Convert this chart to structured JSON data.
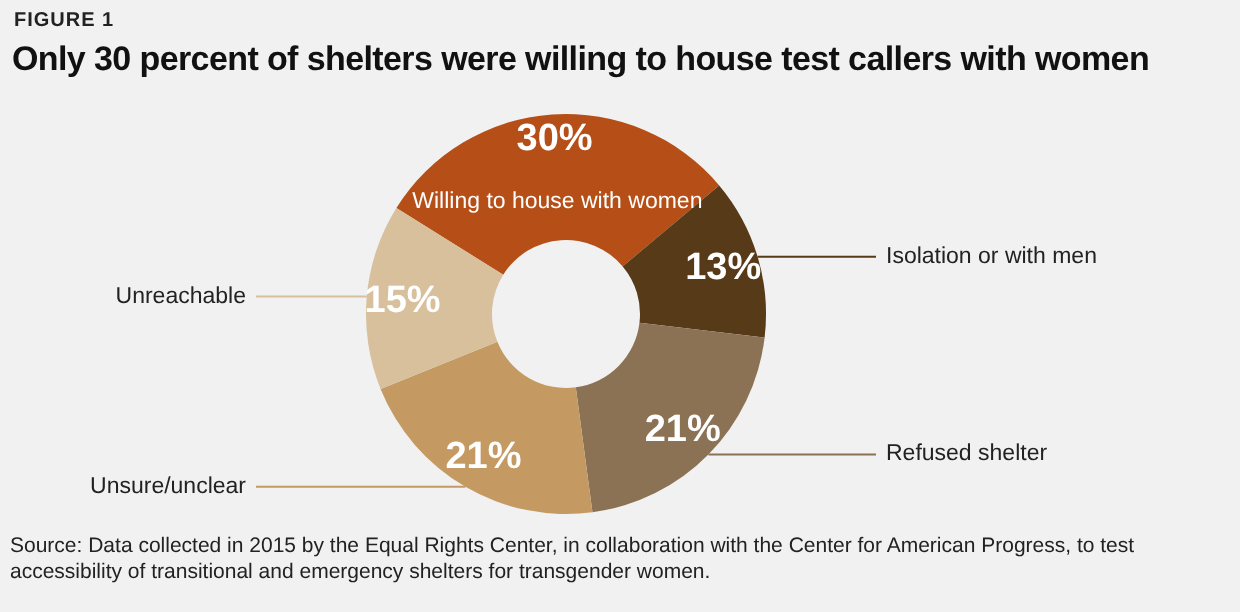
{
  "chart_data": {
    "type": "donut",
    "title": "Only 30 percent of shelters were willing to house test callers with women",
    "subtitle": "FIGURE 1",
    "categories": [
      "Willing to house with women",
      "Isolation or with men",
      "Refused shelter",
      "Unsure/unclear",
      "Unreachable"
    ],
    "values": [
      30,
      13,
      21,
      21,
      15
    ],
    "value_labels": [
      "30%",
      "13%",
      "21%",
      "21%",
      "15%"
    ],
    "colors": [
      "#b64f17",
      "#573a18",
      "#8b7255",
      "#c49a62",
      "#d7c09b"
    ],
    "annotations": [
      "Source: Data collected in 2015 by the Equal Rights Center, in collaboration with the Center for American Progress, to test accessibility of transitional and emergency shelters for transgender women."
    ]
  }
}
